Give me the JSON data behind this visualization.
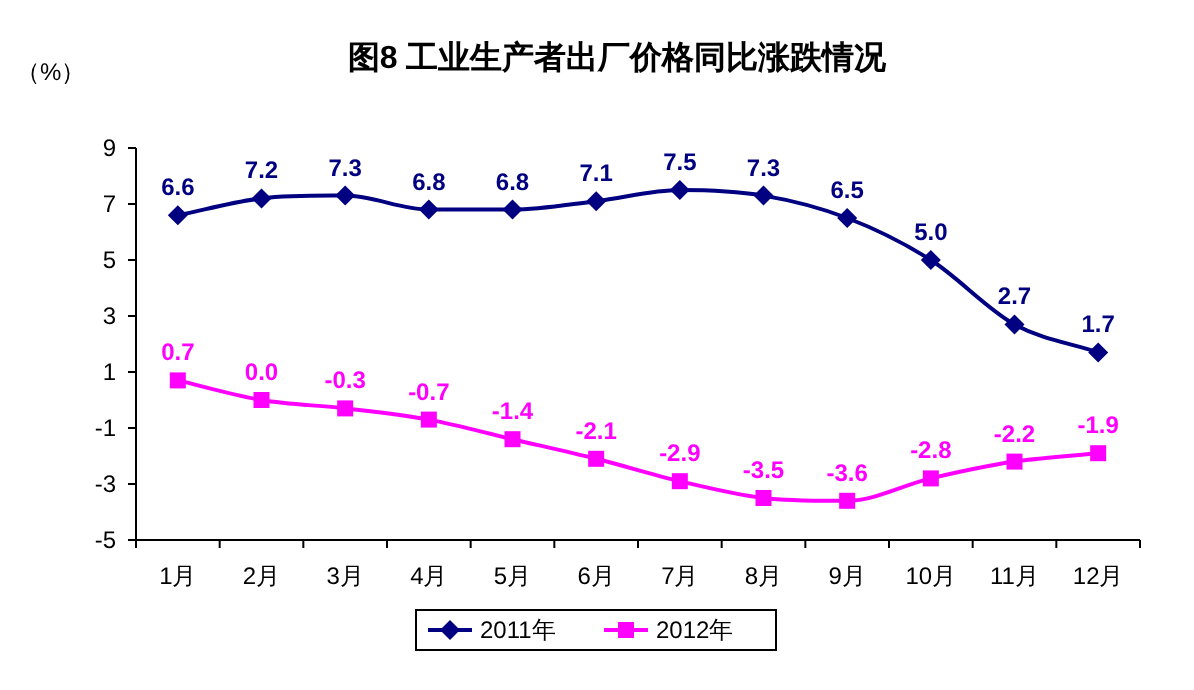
{
  "chart_data": {
    "type": "line",
    "title": "图8  工业生产者出厂价格同比涨跌情况",
    "ylabel": "（%）",
    "categories": [
      "1月",
      "2月",
      "3月",
      "4月",
      "5月",
      "6月",
      "7月",
      "8月",
      "9月",
      "10月",
      "11月",
      "12月"
    ],
    "series": [
      {
        "name": "2011年",
        "color": "#000080",
        "marker": "diamond",
        "values": [
          6.6,
          7.2,
          7.3,
          6.8,
          6.8,
          7.1,
          7.5,
          7.3,
          6.5,
          5.0,
          2.7,
          1.7
        ],
        "value_labels": [
          "6.6",
          "7.2",
          "7.3",
          "6.8",
          "6.8",
          "7.1",
          "7.5",
          "7.3",
          "6.5",
          "5.0",
          "2.7",
          "1.7"
        ]
      },
      {
        "name": "2012年",
        "color": "#ff00ff",
        "marker": "square",
        "values": [
          0.7,
          0.0,
          -0.3,
          -0.7,
          -1.4,
          -2.1,
          -2.9,
          -3.5,
          -3.6,
          -2.8,
          -2.2,
          -1.9
        ],
        "value_labels": [
          "0.7",
          "0.0",
          "-0.3",
          "-0.7",
          "-1.4",
          "-2.1",
          "-2.9",
          "-3.5",
          "-3.6",
          "-2.8",
          "-2.2",
          "-1.9"
        ]
      }
    ],
    "ylim": [
      -5,
      9
    ],
    "yticks": [
      -5,
      -3,
      -1,
      1,
      3,
      5,
      7,
      9
    ],
    "grid": false,
    "legend": "bottom"
  }
}
